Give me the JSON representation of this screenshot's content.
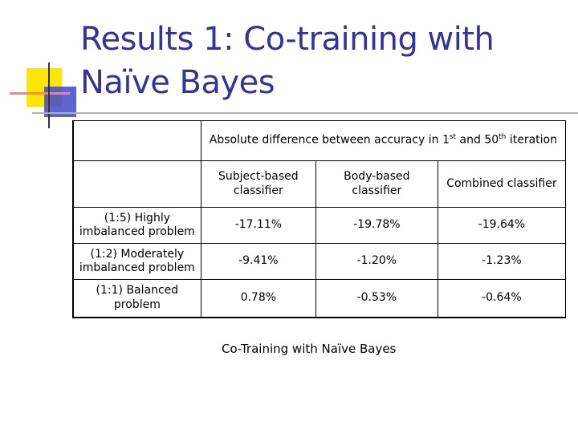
{
  "slide": {
    "title_lines": [
      "Results 1: Co-training with",
      "Naïve Bayes"
    ],
    "table": {
      "header_parts": [
        "Absolute difference between accuracy in 1",
        "st",
        " and 50",
        "th",
        " iteration"
      ],
      "columns": [
        "Subject-based classifier",
        "Body-based classifier",
        "Combined classifier"
      ],
      "rows": [
        [
          "(1:5) Highly imbalanced problem",
          "-17.11%",
          "-19.78%",
          "-19.64%"
        ],
        [
          "(1:2) Moderately imbalanced problem",
          "-9.41%",
          "-1.20%",
          "-1.23%"
        ],
        [
          "(1:1) Balanced problem",
          "0.78%",
          "-0.53%",
          "-0.64%"
        ]
      ]
    },
    "caption": "Co-Training with Naïve Bayes"
  }
}
